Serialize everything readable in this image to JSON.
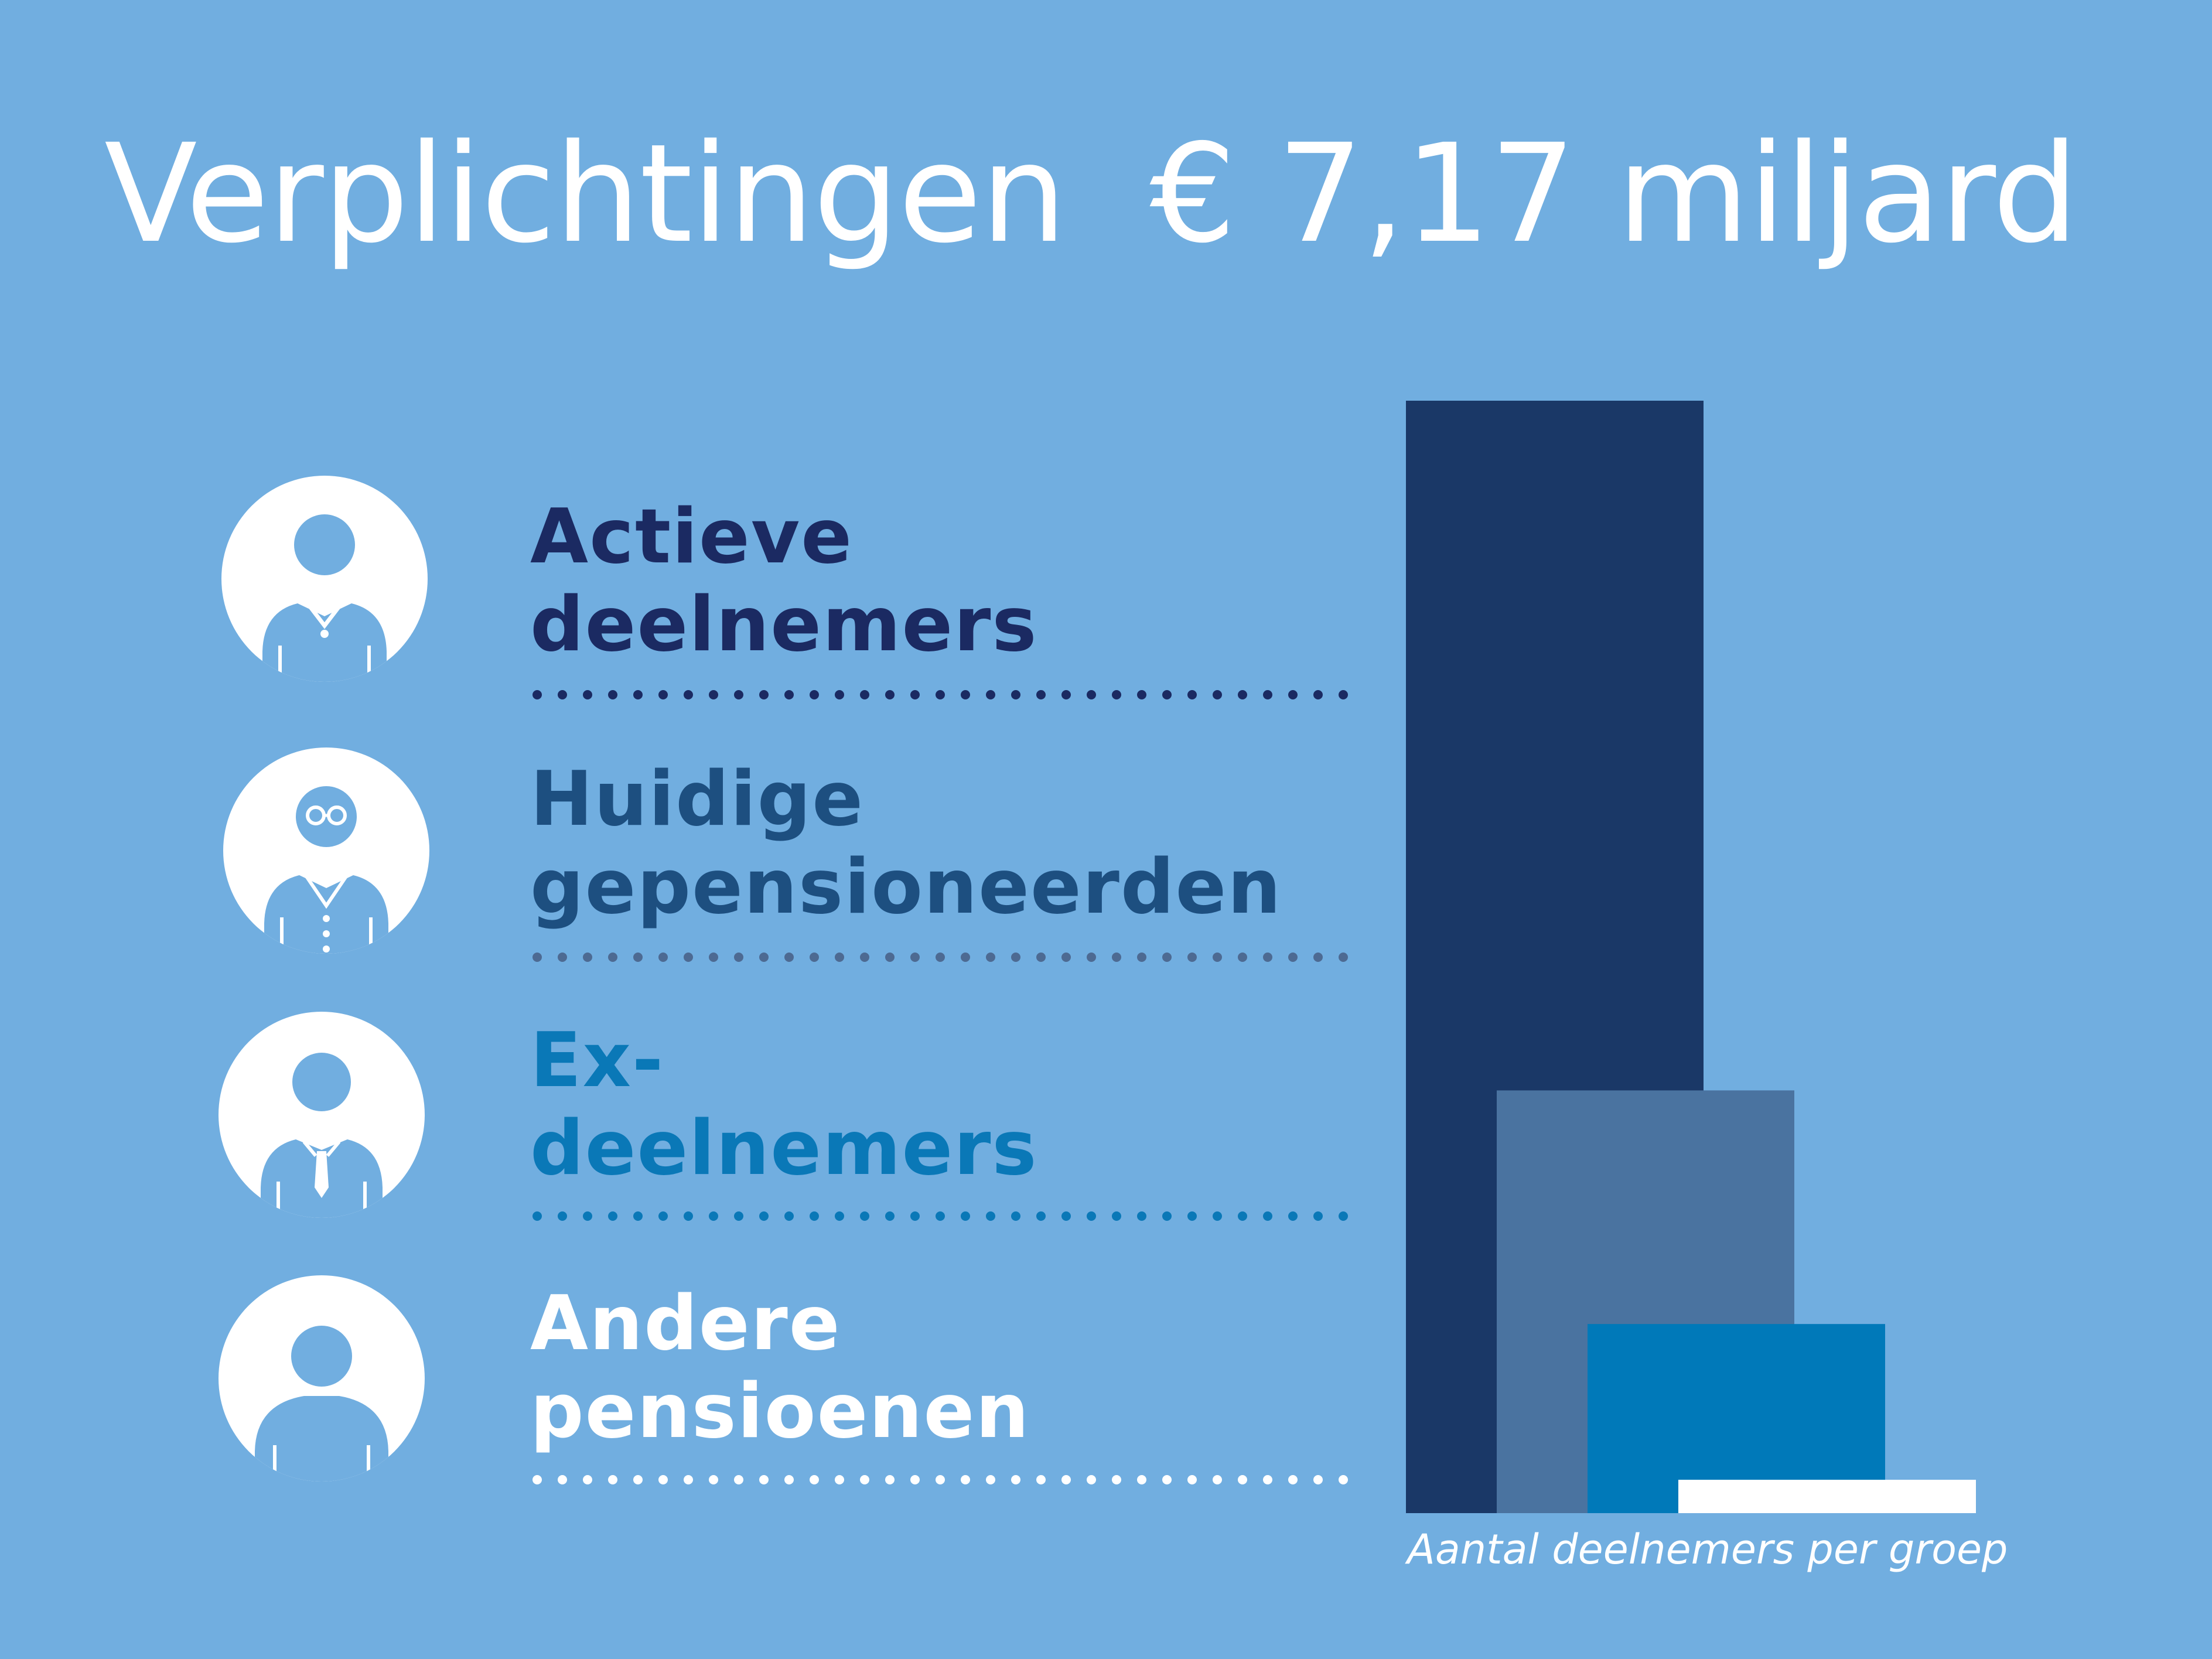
{
  "title": "Verplichtingen  € 7,17 miljard",
  "groups": [
    {
      "line1": "Actieve",
      "line2": "deelnemers",
      "color": "#1b2a62",
      "dot_color": "#1b2a62",
      "icon": "active-participant-icon"
    },
    {
      "line1": "Huidige",
      "line2": "gepensioneerden",
      "color": "#1d4f80",
      "dot_color": "#4d6a92",
      "icon": "retiree-icon"
    },
    {
      "line1": "Ex-",
      "line2": "deelnemers",
      "color": "#0a78b7",
      "dot_color": "#0a78b7",
      "icon": "former-participant-icon"
    },
    {
      "line1": "Andere",
      "line2": "pensioenen",
      "color": "#ffffff",
      "dot_color": "#ffffff",
      "icon": "other-pension-icon"
    }
  ],
  "chart_data": {
    "type": "bar",
    "categories": [
      "Actieve deelnemers",
      "Huidige gepensioneerden",
      "Ex-deelnemers",
      "Andere pensioenen"
    ],
    "values": [
      100,
      38,
      17,
      3
    ],
    "colors": [
      "#1a3867",
      "#4a73a0",
      "#0079b9",
      "#ffffff"
    ],
    "xlabel": "Aantal deelnemers per groep",
    "ylabel": "",
    "ylim": [
      0,
      100
    ],
    "note": "Relative bar heights, overlapping staircase bars; no value axis shown"
  }
}
